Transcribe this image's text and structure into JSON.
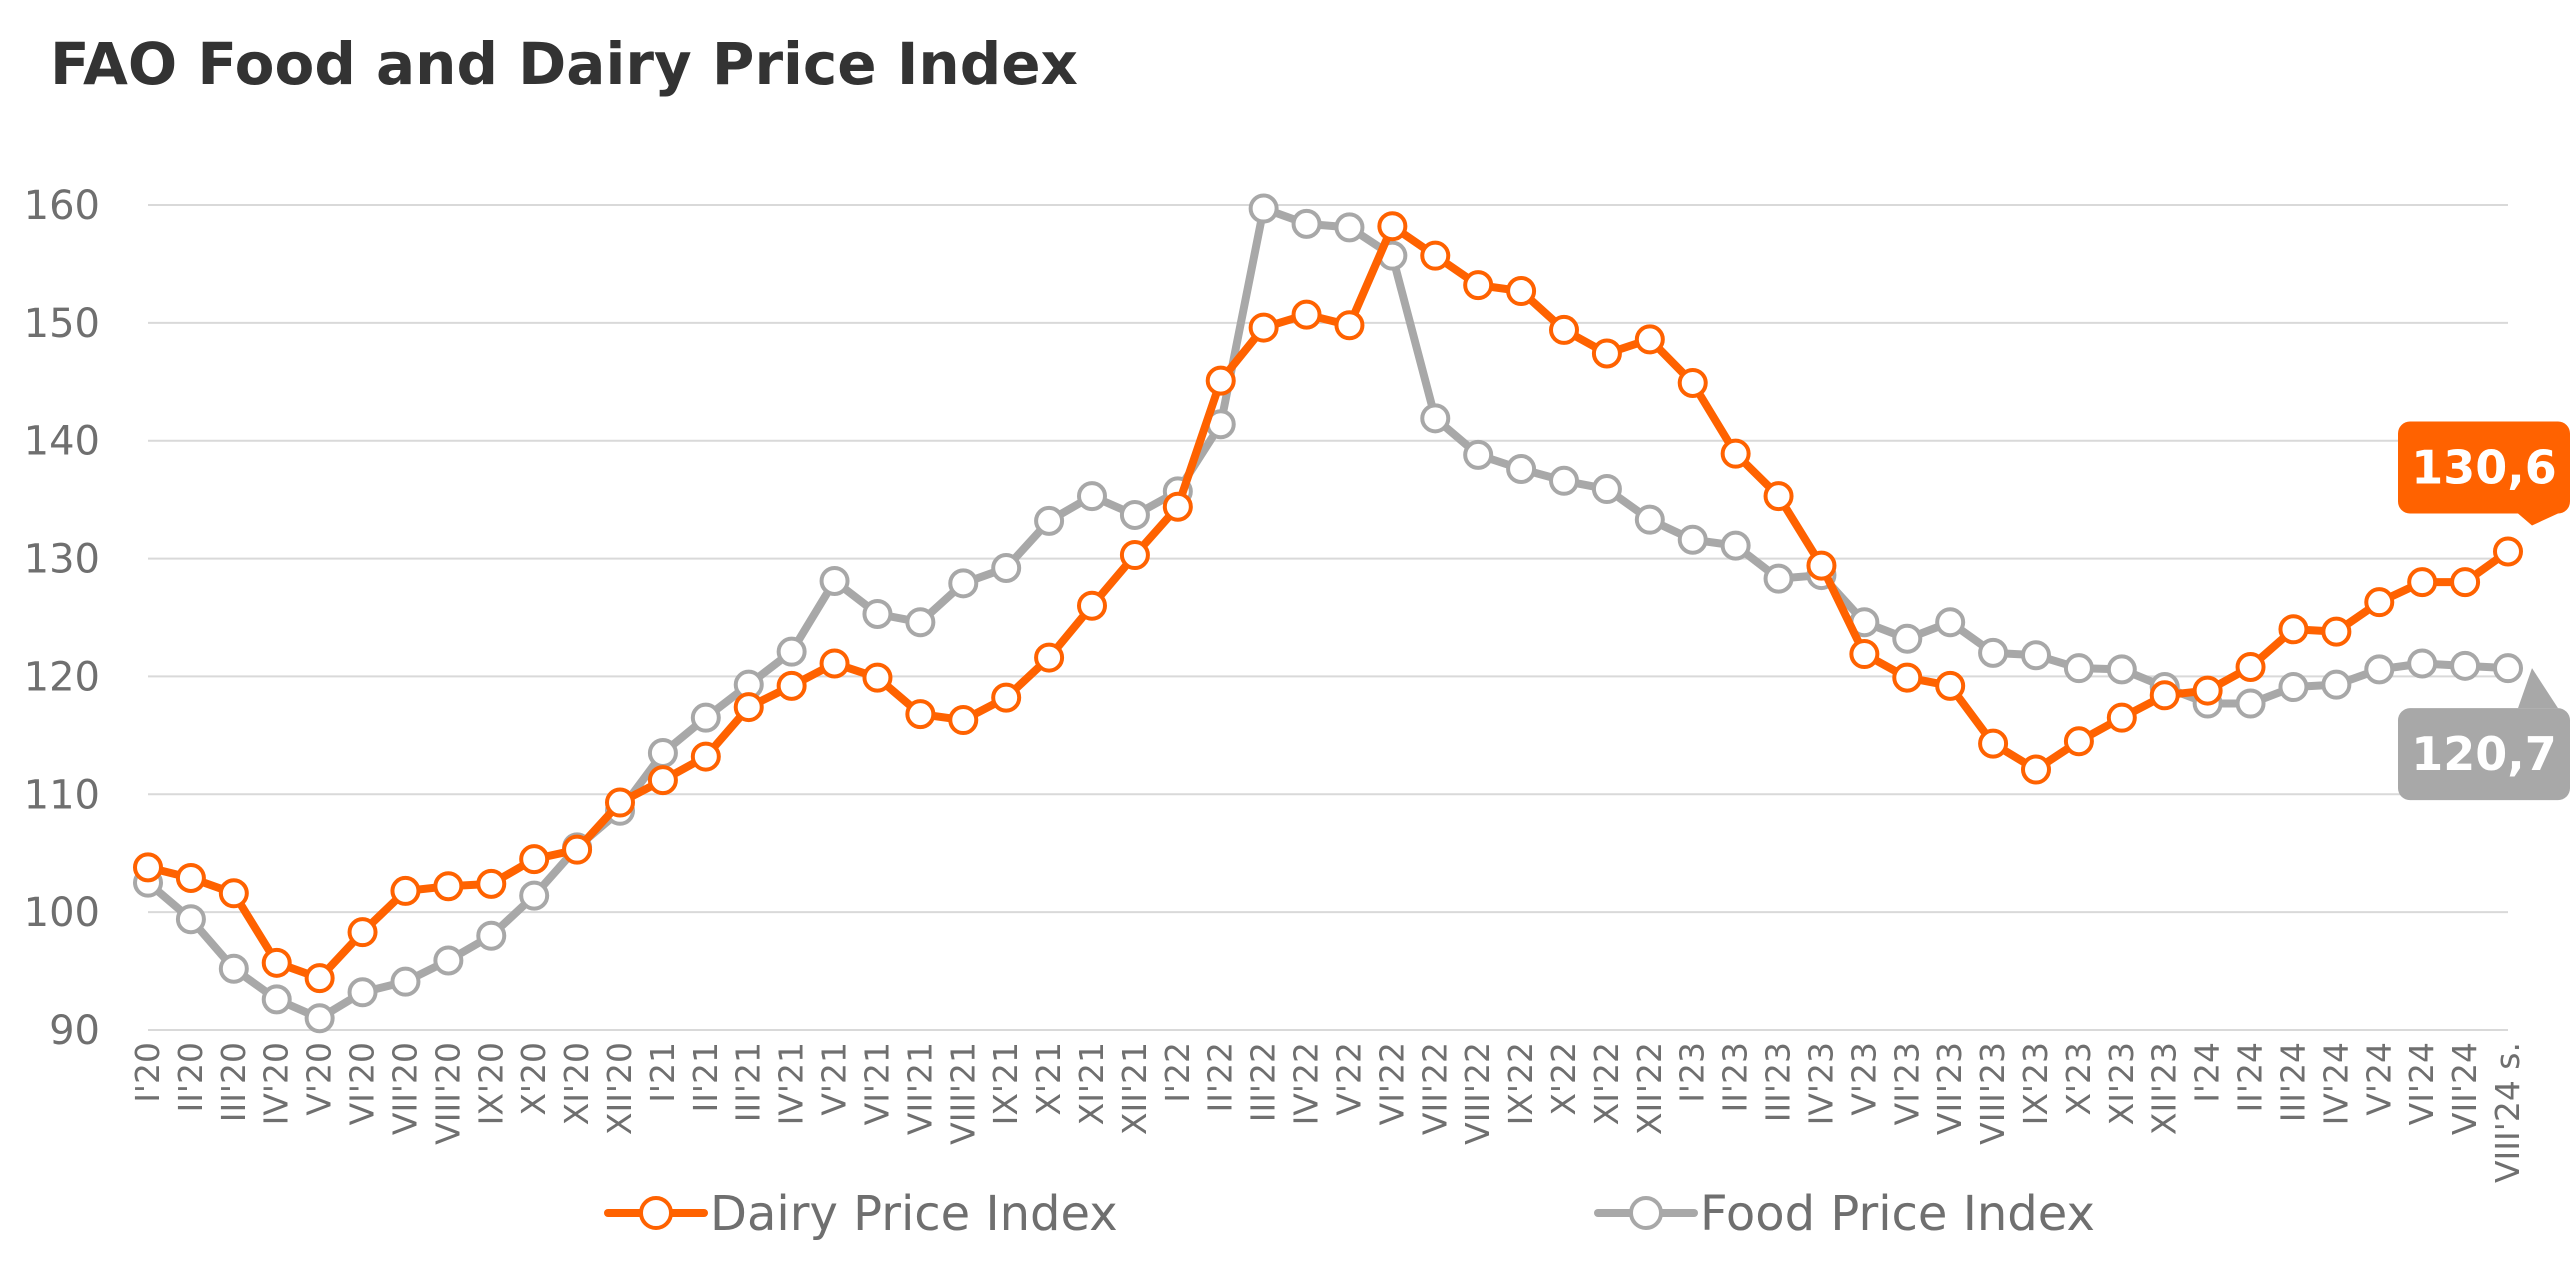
{
  "chart_data": {
    "type": "line",
    "title": "FAO Food and Dairy Price Index",
    "xlabel": "",
    "ylabel": "",
    "ylim": [
      90,
      160
    ],
    "yticks": [
      90,
      100,
      110,
      120,
      130,
      140,
      150,
      160
    ],
    "grid": true,
    "legend": "bottom",
    "categories": [
      "I'20",
      "II'20",
      "III'20",
      "IV'20",
      "V'20",
      "VI'20",
      "VII'20",
      "VIII'20",
      "IX'20",
      "X'20",
      "XI'20",
      "XII'20",
      "I'21",
      "II'21",
      "III'21",
      "IV'21",
      "V'21",
      "VI'21",
      "VII'21",
      "VIII'21",
      "IX'21",
      "X'21",
      "XI'21",
      "XII'21",
      "I'22",
      "II'22",
      "III'22",
      "IV'22",
      "V'22",
      "VI'22",
      "VII'22",
      "VIII'22",
      "IX'22",
      "X'22",
      "XI'22",
      "XII'22",
      "I'23",
      "II'23",
      "III'23",
      "IV'23",
      "V'23",
      "VI'23",
      "VII'23",
      "VIII'23",
      "IX'23",
      "X'23",
      "XI'23",
      "XII'23",
      "I'24",
      "II'24",
      "III'24",
      "IV'24",
      "V'24",
      "VI'24",
      "VII'24",
      "VIII'24 s."
    ],
    "series": [
      {
        "name": "Dairy Price Index",
        "color": "#ff6200",
        "values": [
          103.8,
          102.9,
          101.6,
          95.7,
          94.4,
          98.3,
          101.8,
          102.2,
          102.4,
          104.5,
          105.3,
          109.3,
          111.2,
          113.2,
          117.4,
          119.2,
          121.1,
          119.9,
          116.8,
          116.3,
          118.2,
          121.6,
          126.0,
          130.3,
          134.4,
          145.1,
          149.6,
          150.7,
          149.8,
          158.2,
          155.7,
          153.2,
          152.7,
          149.4,
          147.4,
          148.6,
          144.9,
          138.9,
          135.3,
          129.4,
          121.9,
          119.9,
          119.2,
          114.3,
          112.1,
          114.5,
          116.5,
          118.4,
          118.8,
          120.8,
          124.0,
          123.8,
          126.3,
          128.0,
          128.0,
          130.6
        ]
      },
      {
        "name": "Food Price Index",
        "color": "#a8a8a8",
        "values": [
          102.5,
          99.4,
          95.2,
          92.6,
          91.0,
          93.2,
          94.1,
          95.9,
          98.0,
          101.4,
          105.5,
          108.6,
          113.5,
          116.5,
          119.3,
          122.1,
          128.1,
          125.3,
          124.6,
          127.9,
          129.2,
          133.2,
          135.3,
          133.7,
          135.7,
          141.4,
          159.7,
          158.4,
          158.1,
          155.7,
          141.9,
          138.8,
          137.6,
          136.6,
          135.9,
          133.3,
          131.6,
          131.1,
          128.3,
          128.6,
          124.6,
          123.2,
          124.6,
          122.0,
          121.8,
          120.7,
          120.6,
          119.1,
          117.7,
          117.7,
          119.1,
          119.3,
          120.6,
          121.1,
          120.9,
          120.7
        ]
      }
    ],
    "callouts": [
      {
        "series": "Dairy Price Index",
        "text": "130,6",
        "color": "#ff6200"
      },
      {
        "series": "Food Price Index",
        "text": "120,7",
        "color": "#a8a8a8"
      }
    ]
  }
}
